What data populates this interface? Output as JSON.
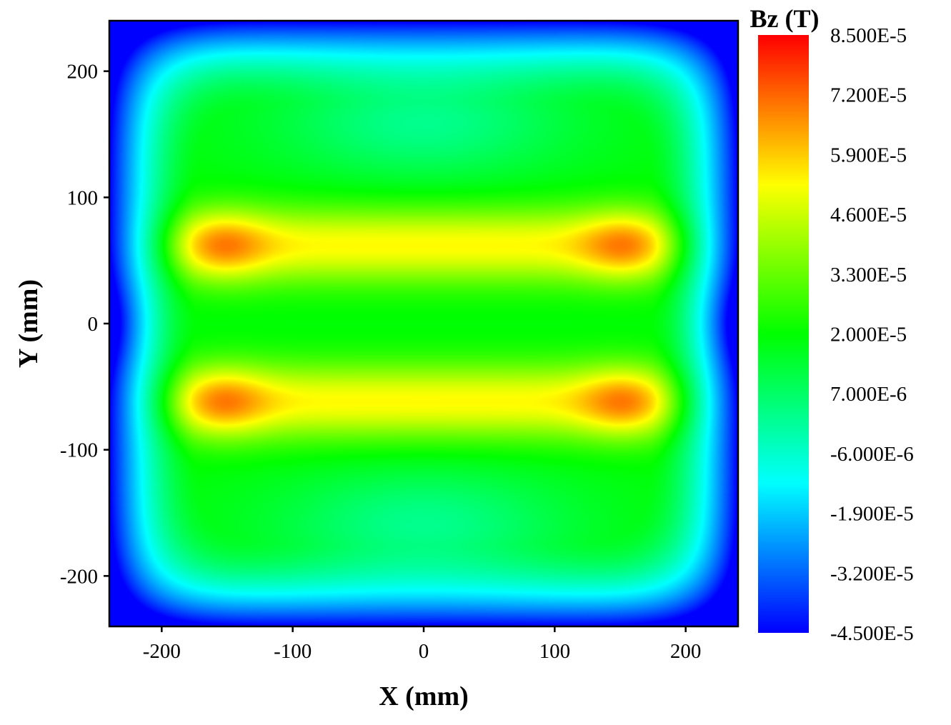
{
  "chart_data": {
    "type": "heatmap",
    "xlabel": "X (mm)",
    "ylabel": "Y (mm)",
    "xlim": [
      -240,
      240
    ],
    "ylim": [
      -240,
      240
    ],
    "x_ticks": [
      -200,
      -100,
      0,
      100,
      200
    ],
    "y_ticks": [
      -200,
      -100,
      0,
      100,
      200
    ],
    "x_tick_labels": [
      "-200",
      "-100",
      "0",
      "100",
      "200"
    ],
    "y_tick_labels": [
      "-200",
      "-100",
      "0",
      "100",
      "200"
    ],
    "colorbar": {
      "title": "Bz (T)",
      "range": [
        -4.5e-05,
        8.5e-05
      ],
      "ticks": [
        8.5e-05,
        7.2e-05,
        5.9e-05,
        4.6e-05,
        3.3e-05,
        2e-05,
        7e-06,
        -6e-06,
        -1.9e-05,
        -3.2e-05,
        -4.5e-05
      ],
      "tick_labels": [
        "8.500E-5",
        "7.200E-5",
        "5.900E-5",
        "4.600E-5",
        "3.300E-5",
        "2.000E-5",
        "7.000E-6",
        "-6.000E-6",
        "-1.900E-5",
        "-3.200E-5",
        "-4.500E-5"
      ],
      "colormap": [
        "#0000ff",
        "#00ffff",
        "#00ff00",
        "#ffff00",
        "#ff0000"
      ]
    },
    "field_features": {
      "hot_spots": [
        {
          "x": -160,
          "y": 62,
          "value": 8.5e-05
        },
        {
          "x": 160,
          "y": 62,
          "value": 8.5e-05
        },
        {
          "x": -160,
          "y": -62,
          "value": 8.5e-05
        },
        {
          "x": 160,
          "y": -62,
          "value": 8.5e-05
        }
      ],
      "center_ridge_value": 5.9e-05,
      "center_value": 2.5e-05,
      "upper_lower_lobe_value": 5e-06,
      "corner_value": -4.5e-05
    }
  }
}
